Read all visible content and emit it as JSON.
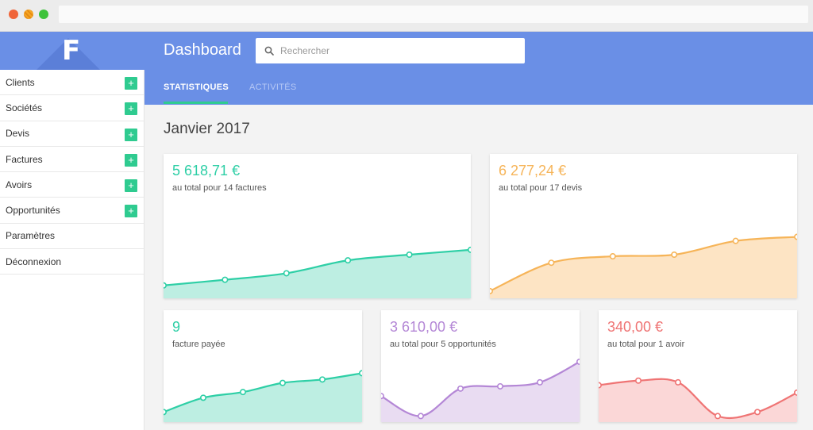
{
  "header": {
    "title": "Dashboard",
    "search_placeholder": "Rechercher"
  },
  "tabs": [
    {
      "label": "STATISTIQUES"
    },
    {
      "label": "ACTIVITÉS"
    }
  ],
  "sidebar": {
    "items": [
      {
        "label": "Clients",
        "has_add": true
      },
      {
        "label": "Sociétés",
        "has_add": true
      },
      {
        "label": "Devis",
        "has_add": true
      },
      {
        "label": "Factures",
        "has_add": true
      },
      {
        "label": "Avoirs",
        "has_add": true
      },
      {
        "label": "Opportunités",
        "has_add": true
      },
      {
        "label": "Paramètres",
        "has_add": false
      },
      {
        "label": "Déconnexion",
        "has_add": false
      }
    ],
    "add_glyph": "+"
  },
  "main": {
    "period": "Janvier 2017"
  },
  "cards": [
    {
      "amount": "5 618,71 €",
      "subtitle": "au total pour 14 factures",
      "color": "#2ecfa6",
      "fill": "#bdeee2"
    },
    {
      "amount": "6 277,24 €",
      "subtitle": "au total pour 17 devis",
      "color": "#f6b458",
      "fill": "#fde4c4"
    },
    {
      "amount": "9",
      "subtitle": "facture payée",
      "color": "#2ecfa6",
      "fill": "#bdeee2"
    },
    {
      "amount": "3 610,00 €",
      "subtitle": "au total pour 5 opportunités",
      "color": "#b487d6",
      "fill": "#e9dcf2"
    },
    {
      "amount": "340,00 €",
      "subtitle": "au total pour 1 avoir",
      "color": "#ef7474",
      "fill": "#fbd7d7"
    }
  ],
  "chart_data": [
    {
      "type": "area",
      "series": [
        {
          "values": [
            0.12,
            0.19,
            0.27,
            0.43,
            0.5,
            0.56
          ]
        }
      ]
    },
    {
      "type": "area",
      "series": [
        {
          "values": [
            0.05,
            0.4,
            0.48,
            0.5,
            0.67,
            0.72
          ]
        }
      ]
    },
    {
      "type": "area",
      "series": [
        {
          "values": [
            0.12,
            0.37,
            0.47,
            0.63,
            0.69,
            0.8
          ]
        }
      ]
    },
    {
      "type": "area",
      "series": [
        {
          "values": [
            0.4,
            0.05,
            0.53,
            0.57,
            0.64,
            1.0
          ]
        }
      ]
    },
    {
      "type": "area",
      "series": [
        {
          "values": [
            0.59,
            0.67,
            0.64,
            0.05,
            0.12,
            0.46
          ]
        }
      ]
    }
  ]
}
